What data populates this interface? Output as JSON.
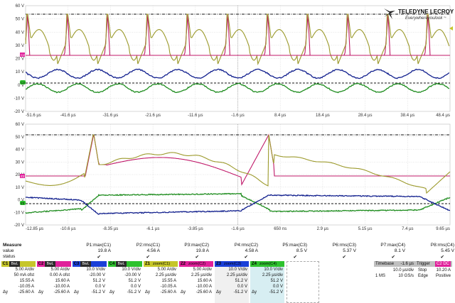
{
  "brand": {
    "name": "TELEDYNE LECROY",
    "tagline": "Everywhereyoulook",
    "tm": "™"
  },
  "top_grid": {
    "y_labels": [
      "60 V",
      "50 V",
      "40 V",
      "30 V",
      "20 V",
      "10 V",
      "0 V",
      "-10 V",
      "-20 V"
    ],
    "x_labels": [
      "-51.6 µs",
      "-41.6 µs",
      "-31.6 µs",
      "-21.6 µs",
      "-11.6 µs",
      "-1.6 µs",
      "8.4 µs",
      "18.4 µs",
      "28.4 µs",
      "38.4 µs",
      "48.4 µs"
    ],
    "markers": {
      "c2": "C2",
      "c3": "C3",
      "c4": "C4"
    }
  },
  "bottom_grid": {
    "y_labels": [
      "60 V",
      "50 V",
      "40 V",
      "30 V",
      "20 V",
      "10 V",
      "0 V",
      "-10 V",
      "-20 V"
    ],
    "x_labels": [
      "-12.85 µs",
      "-10.6 µs",
      "-8.35 µs",
      "-6.1 µs",
      "-3.85 µs",
      "-1.6 µs",
      "650 ns",
      "2.9 µs",
      "5.15 µs",
      "7.4 µs",
      "9.65 µs"
    ],
    "markers": {
      "z2": "Z2",
      "z3": "Z3",
      "z4": "Z4"
    }
  },
  "colors": {
    "c1": "#c6c62a",
    "c2": "#e0209a",
    "c3": "#1a3fd8",
    "c4": "#2ec22e",
    "yellow_trace": "#9c9a2c",
    "magenta_trace": "#c01a6a",
    "blue_trace": "#12208e",
    "green_trace": "#1e8c1e"
  },
  "measure": {
    "header": "Measure",
    "value_label": "value",
    "status_label": "status",
    "params": [
      {
        "name": "P1:max(C1)",
        "value": "19.8 A",
        "status": "✔"
      },
      {
        "name": "P2:rms(C1)",
        "value": "4.56 A",
        "status": "✔"
      },
      {
        "name": "P3:max(C2)",
        "value": "19.8 A",
        "status": "✔"
      },
      {
        "name": "P4:rms(C2)",
        "value": "4.58 A",
        "status": "✔"
      },
      {
        "name": "P5:max(C3)",
        "value": "8.5 V",
        "status": "✔"
      },
      {
        "name": "P6:rms(C3)",
        "value": "5.37 V",
        "status": "✔"
      },
      {
        "name": "P7:max(C4)",
        "value": "8.1 V",
        "status": "✔"
      },
      {
        "name": "P8:rms(C4)",
        "value": "5.45 V",
        "status": "✔"
      }
    ]
  },
  "channels": [
    {
      "tag": "C1",
      "badge": "BwL DC",
      "lines": [
        "5.00 A/div",
        "50 mA ofst",
        "15.55 A",
        "-10.05 A"
      ],
      "dy_label": "Δy",
      "dy": "-25.60 A"
    },
    {
      "tag": "C2",
      "badge": "BwL DC",
      "lines": [
        "5.00 A/div",
        "0.00 A ofst",
        "15.60 A",
        "-10.00 A"
      ],
      "dy_label": "Δy",
      "dy": "-25.60 A"
    },
    {
      "tag": "C3",
      "badge": "BwL DC",
      "lines": [
        "10.0 V/div",
        "-20.00 V",
        "51.2 V",
        "0.0 V"
      ],
      "dy_label": "Δy",
      "dy": "-51.2 V"
    },
    {
      "tag": "C4",
      "badge": "BwL DC",
      "lines": [
        "10.0 V/div",
        "-20.00 V",
        "51.2 V",
        "0.0 V"
      ],
      "dy_label": "Δy",
      "dy": "-51.2 V"
    },
    {
      "tag": "Z1",
      "badge": "zoom(C1)",
      "lines": [
        "5.00 A/div",
        "2.25 µs/div",
        "15.55 A",
        "-10.05 A"
      ],
      "dy_label": "Δy",
      "dy": "-25.60 A"
    },
    {
      "tag": "Z2",
      "badge": "zoom(C2)",
      "lines": [
        "5.00 A/div",
        "2.25 µs/div",
        "15.60 A",
        "-10.00 A"
      ],
      "dy_label": "Δy",
      "dy": "-25.60 A"
    },
    {
      "tag": "Z3",
      "badge": "zoom(C3)",
      "lines": [
        "10.0 V/div",
        "2.25 µs/div",
        "51.2 V",
        "0.0 V"
      ],
      "dy_label": "Δy",
      "dy": "-51.2 V"
    },
    {
      "tag": "Z4",
      "badge": "zoom(C4)",
      "lines": [
        "10.0 V/div",
        "2.25 µs/div",
        "51.2 V",
        "0.0 V"
      ],
      "dy_label": "Δy",
      "dy": "-51.2 V"
    }
  ],
  "timebase": {
    "label": "Timebase",
    "delay": "-1.6 µs",
    "trigger_label": "Trigger",
    "trigger_flags": "C2 DC",
    "div": "10.0 µs/div",
    "mode": "Stop",
    "level": "10.20 A",
    "samples": "1 MS",
    "rate": "10 GS/s",
    "type": "Edge",
    "slope": "Positive"
  }
}
